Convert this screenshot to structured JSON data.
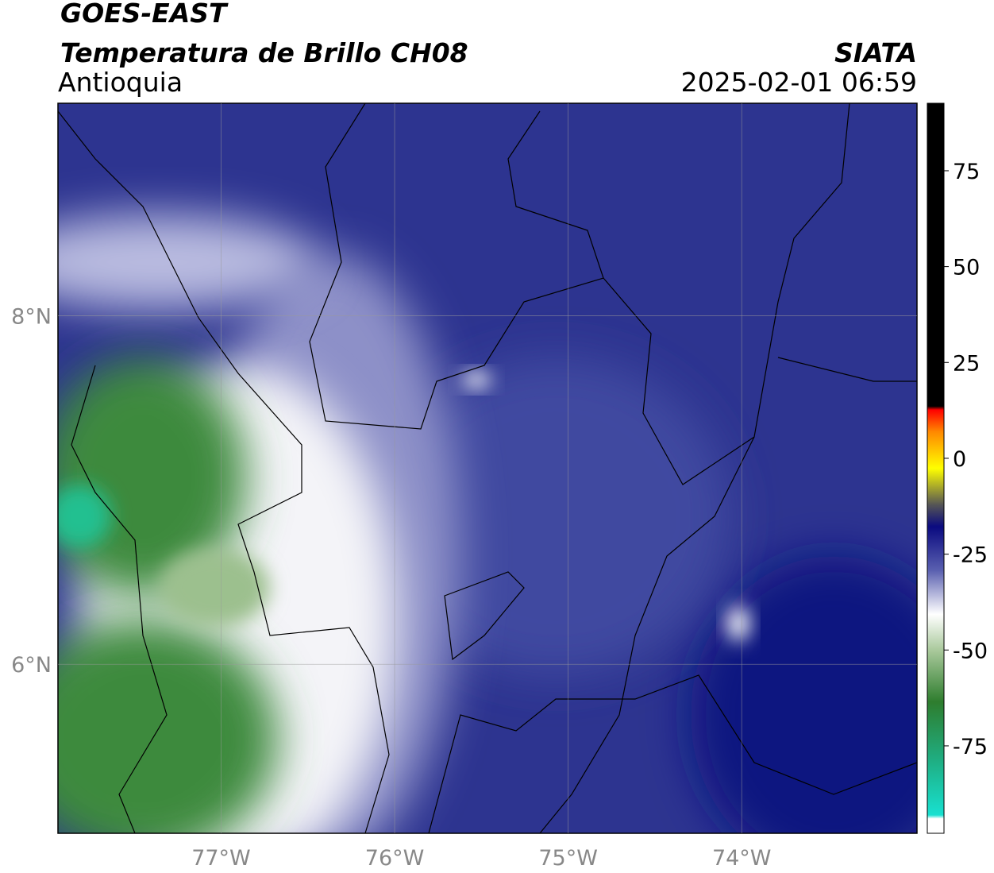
{
  "header": {
    "title": "GOES-EAST",
    "subtitle": "Temperatura de Brillo CH08",
    "region": "Antioquia",
    "agency": "SIATA",
    "datetime": "2025-02-01 06:59"
  },
  "map": {
    "xlim": [
      -77.94,
      -72.99
    ],
    "ylim": [
      5.03,
      9.22
    ],
    "xticks": [
      {
        "value": -77,
        "label": "77°W"
      },
      {
        "value": -76,
        "label": "76°W"
      },
      {
        "value": -75,
        "label": "75°W"
      },
      {
        "value": -74,
        "label": "74°W"
      }
    ],
    "yticks": [
      {
        "value": 8,
        "label": "8°N"
      },
      {
        "value": 6,
        "label": "6°N"
      }
    ],
    "grid": true
  },
  "colorbar": {
    "lim": [
      -97.8,
      92.6
    ],
    "ticks": [
      75,
      50,
      25,
      0,
      -25,
      -50,
      -75
    ]
  }
}
